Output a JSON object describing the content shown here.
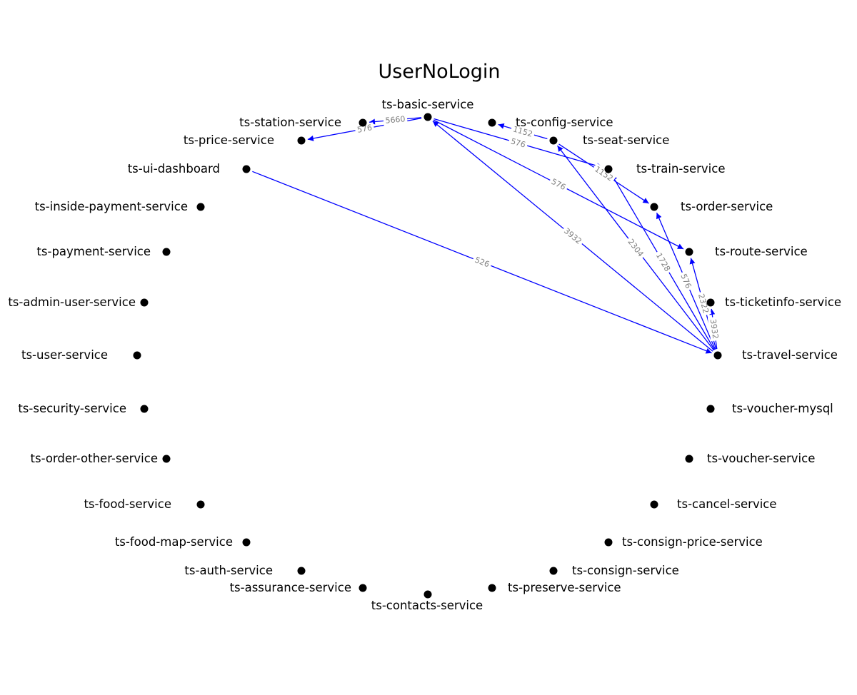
{
  "title": "UserNoLogin",
  "colors": {
    "edge": "#0000ff",
    "node": "#000000",
    "edge_label": "#808080",
    "background": "#ffffff"
  },
  "nodes": [
    {
      "id": "ts-basic-service",
      "label": "ts-basic-service"
    },
    {
      "id": "ts-station-service",
      "label": "ts-station-service"
    },
    {
      "id": "ts-price-service",
      "label": "ts-price-service"
    },
    {
      "id": "ts-ui-dashboard",
      "label": "ts-ui-dashboard"
    },
    {
      "id": "ts-inside-payment-service",
      "label": "ts-inside-payment-service"
    },
    {
      "id": "ts-payment-service",
      "label": "ts-payment-service"
    },
    {
      "id": "ts-admin-user-service",
      "label": "ts-admin-user-service"
    },
    {
      "id": "ts-user-service",
      "label": "ts-user-service"
    },
    {
      "id": "ts-security-service",
      "label": "ts-security-service"
    },
    {
      "id": "ts-order-other-service",
      "label": "ts-order-other-service"
    },
    {
      "id": "ts-food-service",
      "label": "ts-food-service"
    },
    {
      "id": "ts-food-map-service",
      "label": "ts-food-map-service"
    },
    {
      "id": "ts-auth-service",
      "label": "ts-auth-service"
    },
    {
      "id": "ts-assurance-service",
      "label": "ts-assurance-service"
    },
    {
      "id": "ts-contacts-service",
      "label": "ts-contacts-service"
    },
    {
      "id": "ts-preserve-service",
      "label": "ts-preserve-service"
    },
    {
      "id": "ts-consign-service",
      "label": "ts-consign-service"
    },
    {
      "id": "ts-consign-price-service",
      "label": "ts-consign-price-service"
    },
    {
      "id": "ts-cancel-service",
      "label": "ts-cancel-service"
    },
    {
      "id": "ts-voucher-service",
      "label": "ts-voucher-service"
    },
    {
      "id": "ts-voucher-mysql",
      "label": "ts-voucher-mysql"
    },
    {
      "id": "ts-travel-service",
      "label": "ts-travel-service"
    },
    {
      "id": "ts-ticketinfo-service",
      "label": "ts-ticketinfo-service"
    },
    {
      "id": "ts-route-service",
      "label": "ts-route-service"
    },
    {
      "id": "ts-order-service",
      "label": "ts-order-service"
    },
    {
      "id": "ts-train-service",
      "label": "ts-train-service"
    },
    {
      "id": "ts-seat-service",
      "label": "ts-seat-service"
    },
    {
      "id": "ts-config-service",
      "label": "ts-config-service"
    }
  ],
  "edges": [
    {
      "source": "ts-basic-service",
      "target": "ts-station-service",
      "label": "5660"
    },
    {
      "source": "ts-basic-service",
      "target": "ts-price-service",
      "label": "576"
    },
    {
      "source": "ts-seat-service",
      "target": "ts-config-service",
      "label": "1152"
    },
    {
      "source": "ts-basic-service",
      "target": "ts-train-service",
      "label": "576"
    },
    {
      "source": "ts-seat-service",
      "target": "ts-order-service",
      "label": "1152"
    },
    {
      "source": "ts-basic-service",
      "target": "ts-route-service",
      "label": "576"
    },
    {
      "source": "ts-travel-service",
      "target": "ts-basic-service",
      "label": "3932"
    },
    {
      "source": "ts-ui-dashboard",
      "target": "ts-travel-service",
      "label": "526"
    },
    {
      "source": "ts-travel-service",
      "target": "ts-seat-service",
      "label": "2304"
    },
    {
      "source": "ts-travel-service",
      "target": "ts-train-service",
      "label": "1728"
    },
    {
      "source": "ts-travel-service",
      "target": "ts-order-service",
      "label": "576"
    },
    {
      "source": "ts-travel-service",
      "target": "ts-route-service",
      "label": "2322"
    },
    {
      "source": "ts-travel-service",
      "target": "ts-ticketinfo-service",
      "label": "3932"
    }
  ]
}
